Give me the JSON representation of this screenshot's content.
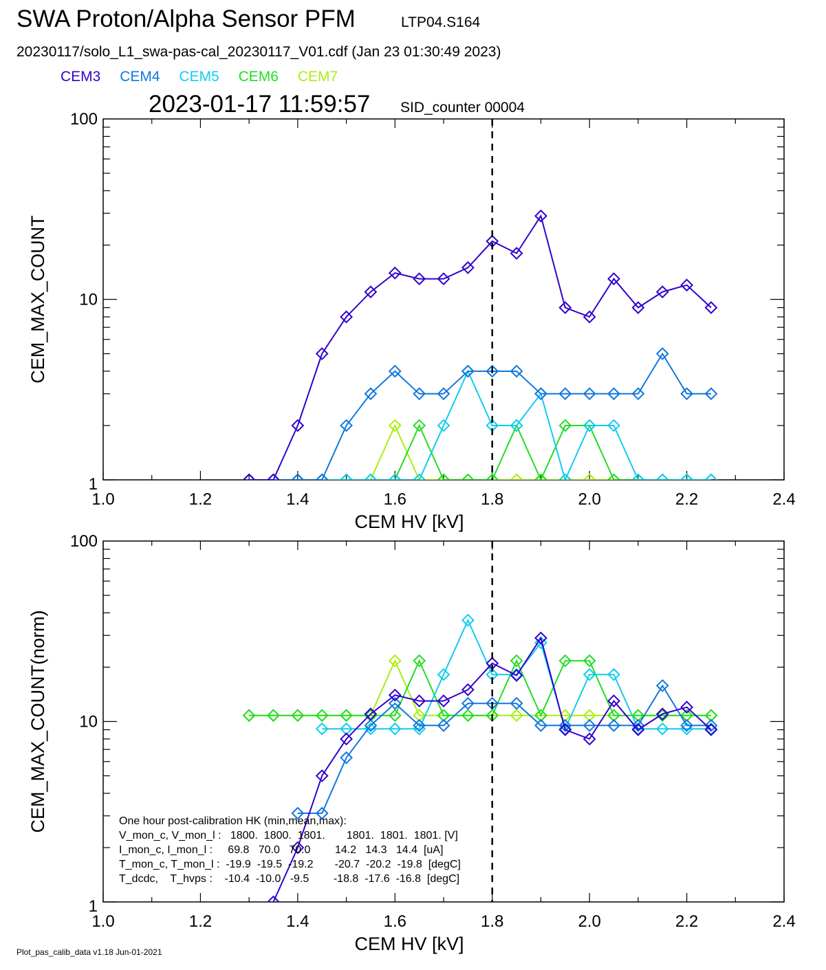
{
  "header": {
    "title": "SWA Proton/Alpha Sensor PFM",
    "title_tag": "LTP04.S164",
    "file_line": "20230117/solo_L1_swa-pas-cal_20230117_V01.cdf  (Jan 23 01:30:49 2023)",
    "timestamp": "2023-01-17 11:59:57",
    "sid": "SID_counter 00004"
  },
  "legend": [
    {
      "name": "CEM3",
      "color": "#3300cc"
    },
    {
      "name": "CEM4",
      "color": "#1177dd"
    },
    {
      "name": "CEM5",
      "color": "#11ccee"
    },
    {
      "name": "CEM6",
      "color": "#22dd22"
    },
    {
      "name": "CEM7",
      "color": "#aaee11"
    }
  ],
  "footer": "Plot_pas_calib_data v1.18 Jun-01-2021",
  "hk_text": [
    "One hour post-calibration HK (min,mean,max):",
    "V_mon_c, V_mon_l :   1800.  1800.  1801.       1801.  1801.  1801. [V]",
    "I_mon_c, I_mon_l :     69.8   70.0   70.0        14.2   14.3   14.4  [uA]",
    "T_mon_c, T_mon_l :  -19.9  -19.5  -19.2       -20.7  -20.2  -19.8  [degC]",
    "T_dcdc,    T_hvps :    -10.4  -10.0   -9.5        -18.8  -17.6  -16.8  [degC]"
  ],
  "chart_data": [
    {
      "type": "line",
      "xlabel": "CEM HV [kV]",
      "ylabel": "CEM_MAX_COUNT",
      "xlim": [
        1.0,
        2.4
      ],
      "ylim": [
        1,
        100
      ],
      "yscale": "log",
      "xticks": [
        "1.0",
        "1.2",
        "1.4",
        "1.6",
        "1.8",
        "2.0",
        "2.2",
        "2.4"
      ],
      "yticks": [
        "1",
        "10",
        "100"
      ],
      "vline": 1.8,
      "x": [
        1.3,
        1.35,
        1.4,
        1.45,
        1.5,
        1.55,
        1.6,
        1.65,
        1.7,
        1.75,
        1.8,
        1.85,
        1.9,
        1.95,
        2.0,
        2.05,
        2.1,
        2.15,
        2.2,
        2.25
      ],
      "series": [
        {
          "name": "CEM7",
          "values": [
            1,
            1,
            1,
            1,
            1,
            1,
            2,
            1,
            1,
            1,
            1,
            1,
            1,
            1,
            1,
            1,
            1,
            1,
            1,
            1
          ]
        },
        {
          "name": "CEM6",
          "values": [
            1,
            1,
            1,
            1,
            1,
            1,
            1,
            2,
            1,
            1,
            1,
            2,
            1,
            2,
            2,
            1,
            1,
            1,
            1,
            1
          ]
        },
        {
          "name": "CEM5",
          "values": [
            1,
            1,
            1,
            1,
            1,
            1,
            1,
            1,
            2,
            4,
            2,
            2,
            3,
            1,
            2,
            2,
            1,
            1,
            1,
            1
          ]
        },
        {
          "name": "CEM4",
          "values": [
            1,
            1,
            1,
            1,
            2,
            3,
            4,
            3,
            3,
            4,
            4,
            4,
            3,
            3,
            3,
            3,
            3,
            5,
            3,
            3
          ]
        },
        {
          "name": "CEM3",
          "values": [
            1,
            1,
            2,
            5,
            8,
            11,
            14,
            13,
            13,
            15,
            21,
            18,
            29,
            9,
            8,
            13,
            9,
            11,
            12,
            9
          ]
        }
      ]
    },
    {
      "type": "line",
      "xlabel": "CEM HV [kV]",
      "ylabel": "CEM_MAX_COUNT(norm)",
      "xlim": [
        1.0,
        2.4
      ],
      "ylim": [
        1,
        100
      ],
      "yscale": "log",
      "xticks": [
        "1.0",
        "1.2",
        "1.4",
        "1.6",
        "1.8",
        "2.0",
        "2.2",
        "2.4"
      ],
      "yticks": [
        "1",
        "10",
        "100"
      ],
      "vline": 1.8,
      "x": [
        1.3,
        1.35,
        1.4,
        1.45,
        1.5,
        1.55,
        1.6,
        1.65,
        1.7,
        1.75,
        1.8,
        1.85,
        1.9,
        1.95,
        2.0,
        2.05,
        2.1,
        2.15,
        2.2,
        2.25
      ],
      "series": [
        {
          "name": "CEM7",
          "values": [
            10.8,
            10.8,
            10.8,
            10.8,
            10.8,
            10.8,
            21.7,
            10.8,
            10.8,
            10.8,
            10.8,
            10.8,
            10.8,
            10.8,
            10.8,
            10.8,
            10.8,
            10.8,
            10.8,
            10.8
          ]
        },
        {
          "name": "CEM6",
          "values": [
            10.8,
            10.8,
            10.8,
            10.8,
            10.8,
            10.8,
            10.8,
            21.7,
            10.8,
            10.8,
            10.8,
            21.7,
            10.8,
            21.7,
            21.7,
            10.8,
            10.8,
            10.8,
            10.8,
            10.8
          ]
        },
        {
          "name": "CEM5",
          "values": [
            null,
            null,
            null,
            9.1,
            9.1,
            9.1,
            9.1,
            9.1,
            18.2,
            36.4,
            18.2,
            18.2,
            27.3,
            9.1,
            18.2,
            18.2,
            9.1,
            9.1,
            9.1,
            9.1
          ]
        },
        {
          "name": "CEM4",
          "values": [
            null,
            null,
            3.1,
            3.1,
            6.3,
            9.5,
            12.6,
            9.5,
            9.5,
            12.6,
            12.6,
            12.6,
            9.5,
            9.5,
            9.5,
            9.5,
            9.5,
            15.8,
            9.5,
            9.5
          ]
        },
        {
          "name": "CEM3",
          "values": [
            null,
            1,
            2,
            5,
            8,
            11,
            14,
            13,
            13,
            15,
            21,
            18,
            29,
            9,
            8,
            13,
            9,
            11,
            12,
            9
          ]
        }
      ]
    }
  ]
}
